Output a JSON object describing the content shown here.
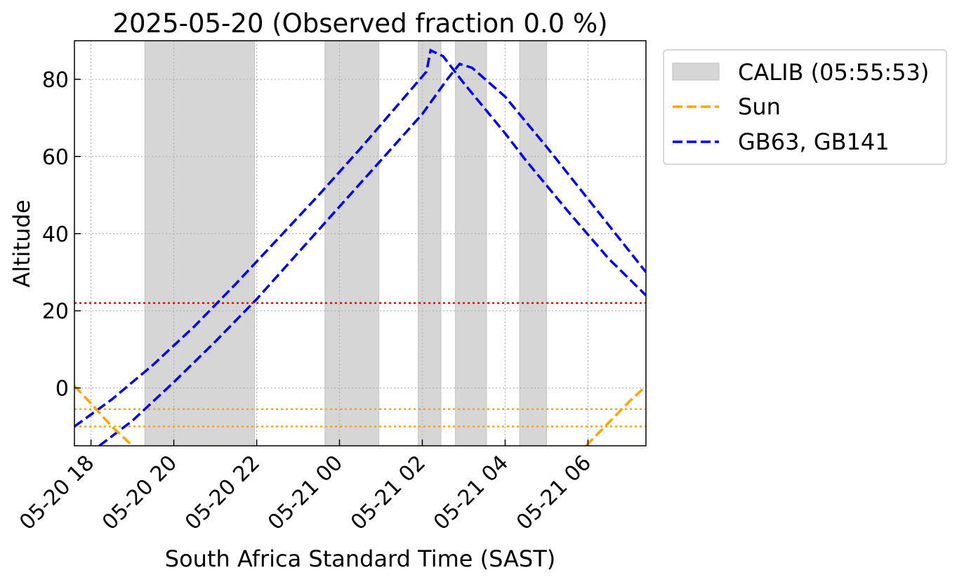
{
  "chart_data": {
    "type": "line",
    "title": "2025-05-20 (Observed fraction 0.0 %)",
    "xlabel": "South Africa Standard Time (SAST)",
    "ylabel": "Altitude",
    "xlim_hours": [
      17.6,
      31.4
    ],
    "ylim": [
      -15,
      90
    ],
    "x_ticks": [
      {
        "hour": 18,
        "label": "05-20 18"
      },
      {
        "hour": 20,
        "label": "05-20 20"
      },
      {
        "hour": 22,
        "label": "05-20 22"
      },
      {
        "hour": 24,
        "label": "05-21 00"
      },
      {
        "hour": 26,
        "label": "05-21 02"
      },
      {
        "hour": 28,
        "label": "05-21 04"
      },
      {
        "hour": 30,
        "label": "05-21 06"
      }
    ],
    "y_ticks": [
      0,
      20,
      40,
      60,
      80
    ],
    "grid": true,
    "legend": {
      "placement": "outside-top-right",
      "entries": [
        {
          "label": "CALIB (05:55:53)",
          "style": "shaded-box",
          "color": "#d6d6d6"
        },
        {
          "label": "Sun",
          "style": "dashed",
          "color": "#ffa500"
        },
        {
          "label": "GB63, GB141",
          "style": "dashed",
          "color": "#0000ff"
        }
      ]
    },
    "calib_intervals_hours": [
      [
        19.3,
        21.95
      ],
      [
        23.65,
        24.95
      ],
      [
        25.9,
        26.45
      ],
      [
        26.8,
        27.55
      ],
      [
        28.35,
        29.0
      ]
    ],
    "horizontal_lines": [
      {
        "y": 22,
        "color": "#ff0000",
        "style": "dotted"
      },
      {
        "y": -5.5,
        "color": "#ffa500",
        "style": "dotted"
      },
      {
        "y": -10,
        "color": "#ffa500",
        "style": "dotted"
      }
    ],
    "series": [
      {
        "color": "#0000ff",
        "style": "dashed",
        "x": [
          17.6,
          18.5,
          19.5,
          20.5,
          21.5,
          22.5,
          23.5,
          24.5,
          25.5,
          26.1,
          26.2,
          26.5,
          27.0,
          27.5,
          28.0,
          28.5,
          29.5,
          30.5,
          31.4
        ],
        "y": [
          -10.0,
          -3.0,
          6.0,
          16.0,
          27.0,
          38.5,
          50.0,
          62.0,
          74.5,
          82.0,
          87.5,
          86.0,
          79.0,
          72.5,
          66.0,
          59.0,
          46.0,
          33.5,
          24.0
        ]
      },
      {
        "color": "#0000ff",
        "style": "dashed",
        "x": [
          18.2,
          19.0,
          20.0,
          21.0,
          22.0,
          23.0,
          24.0,
          25.0,
          26.0,
          26.6,
          26.9,
          27.2,
          28.0,
          29.0,
          30.0,
          31.4
        ],
        "y": [
          -15.0,
          -8.5,
          1.5,
          12.0,
          23.0,
          35.0,
          47.0,
          59.0,
          71.0,
          80.0,
          84.0,
          83.0,
          75.5,
          62.5,
          49.0,
          30.0
        ]
      },
      {
        "name": "Sun",
        "color": "#ffa500",
        "style": "dashed",
        "x": [
          17.6,
          18.0,
          18.5,
          19.0
        ],
        "y": [
          0.5,
          -4.0,
          -10.0,
          -15.0
        ]
      },
      {
        "name": "Sun",
        "color": "#ffa500",
        "style": "dashed",
        "x": [
          29.95,
          30.5,
          31.0,
          31.4
        ],
        "y": [
          -15.0,
          -9.0,
          -3.5,
          0.5
        ]
      }
    ]
  }
}
